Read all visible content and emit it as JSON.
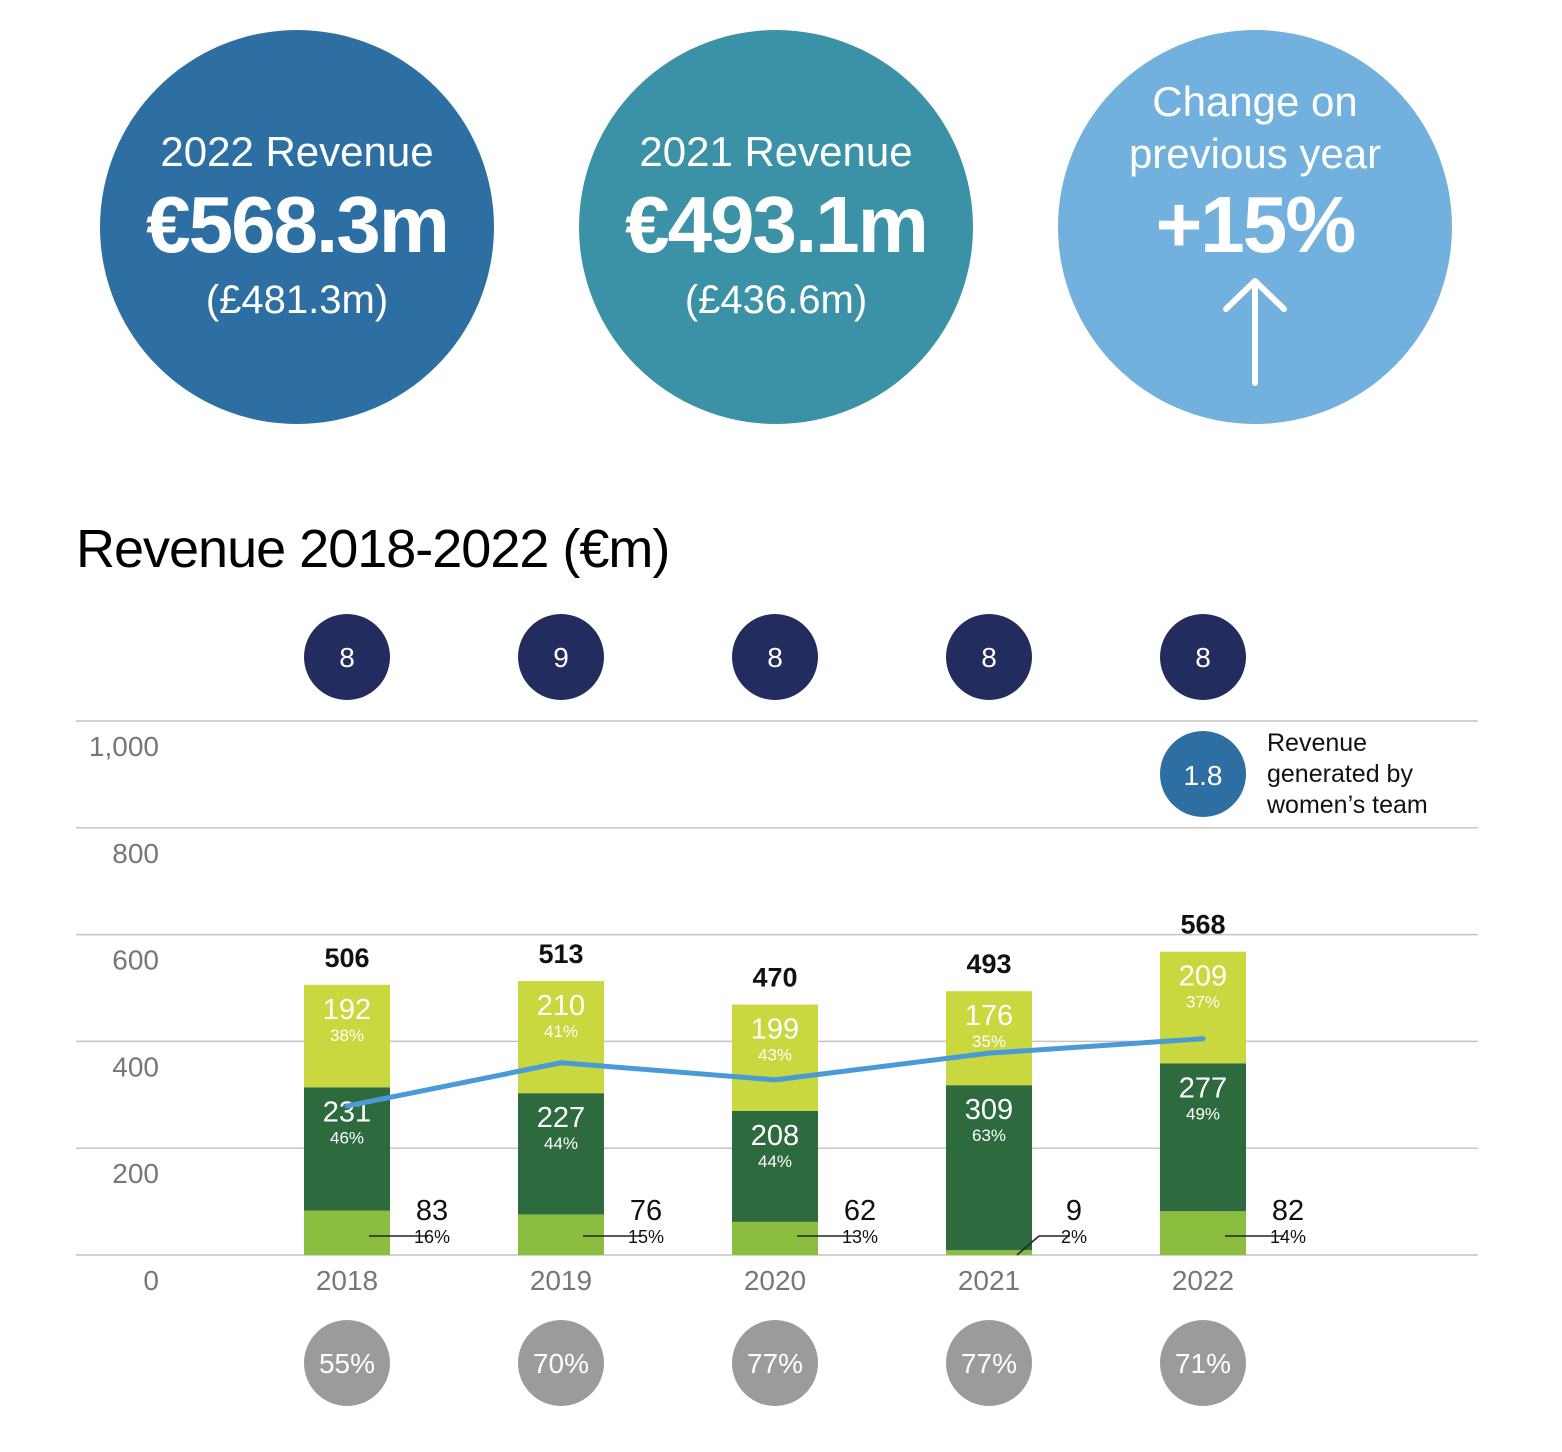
{
  "kpis": [
    {
      "label": "2022 Revenue",
      "value": "€568.3m",
      "sub": "(£481.3m)",
      "color": "#2e6fa3"
    },
    {
      "label": "2021 Revenue",
      "value": "€493.1m",
      "sub": "(£436.6m)",
      "color": "#3b91a6"
    },
    {
      "label": "Change on previous year",
      "value": "+15%",
      "icon": "up-arrow-icon",
      "color": "#72b0de"
    }
  ],
  "chart_data": {
    "type": "bar",
    "stacked": true,
    "title": "Revenue 2018-2022 (€m)",
    "categories": [
      "2018",
      "2019",
      "2020",
      "2021",
      "2022"
    ],
    "ylim": [
      0,
      1000
    ],
    "yticks": [
      "0",
      "200",
      "400",
      "600",
      "800",
      "1,000"
    ],
    "grid": true,
    "totals": [
      "506",
      "513",
      "470",
      "493",
      "568"
    ],
    "series": [
      {
        "values": [
          83,
          76,
          62,
          9,
          82
        ],
        "pct": [
          "16%",
          "15%",
          "13%",
          "2%",
          "14%"
        ],
        "color": "#8bbe3f"
      },
      {
        "values": [
          231,
          227,
          208,
          309,
          277
        ],
        "pct": [
          "46%",
          "44%",
          "44%",
          "63%",
          "49%"
        ],
        "color": "#2d6b3f"
      },
      {
        "values": [
          192,
          210,
          199,
          176,
          209
        ],
        "pct": [
          "38%",
          "41%",
          "43%",
          "35%",
          "37%"
        ],
        "color": "#c8d83e"
      }
    ],
    "line": {
      "values": [
        279,
        360,
        328,
        378,
        405
      ],
      "color": "#4a9ad8"
    },
    "top_badges": {
      "values": [
        "8",
        "9",
        "8",
        "8",
        "8"
      ],
      "color": "#232c5e"
    },
    "bottom_badges": {
      "values": [
        "55%",
        "70%",
        "77%",
        "77%",
        "71%"
      ],
      "color": "#9b9b9b"
    },
    "legend_badge": {
      "value": "1.8",
      "label": [
        "Revenue",
        "generated by",
        "women’s team"
      ],
      "color": "#2e6fa3"
    }
  }
}
